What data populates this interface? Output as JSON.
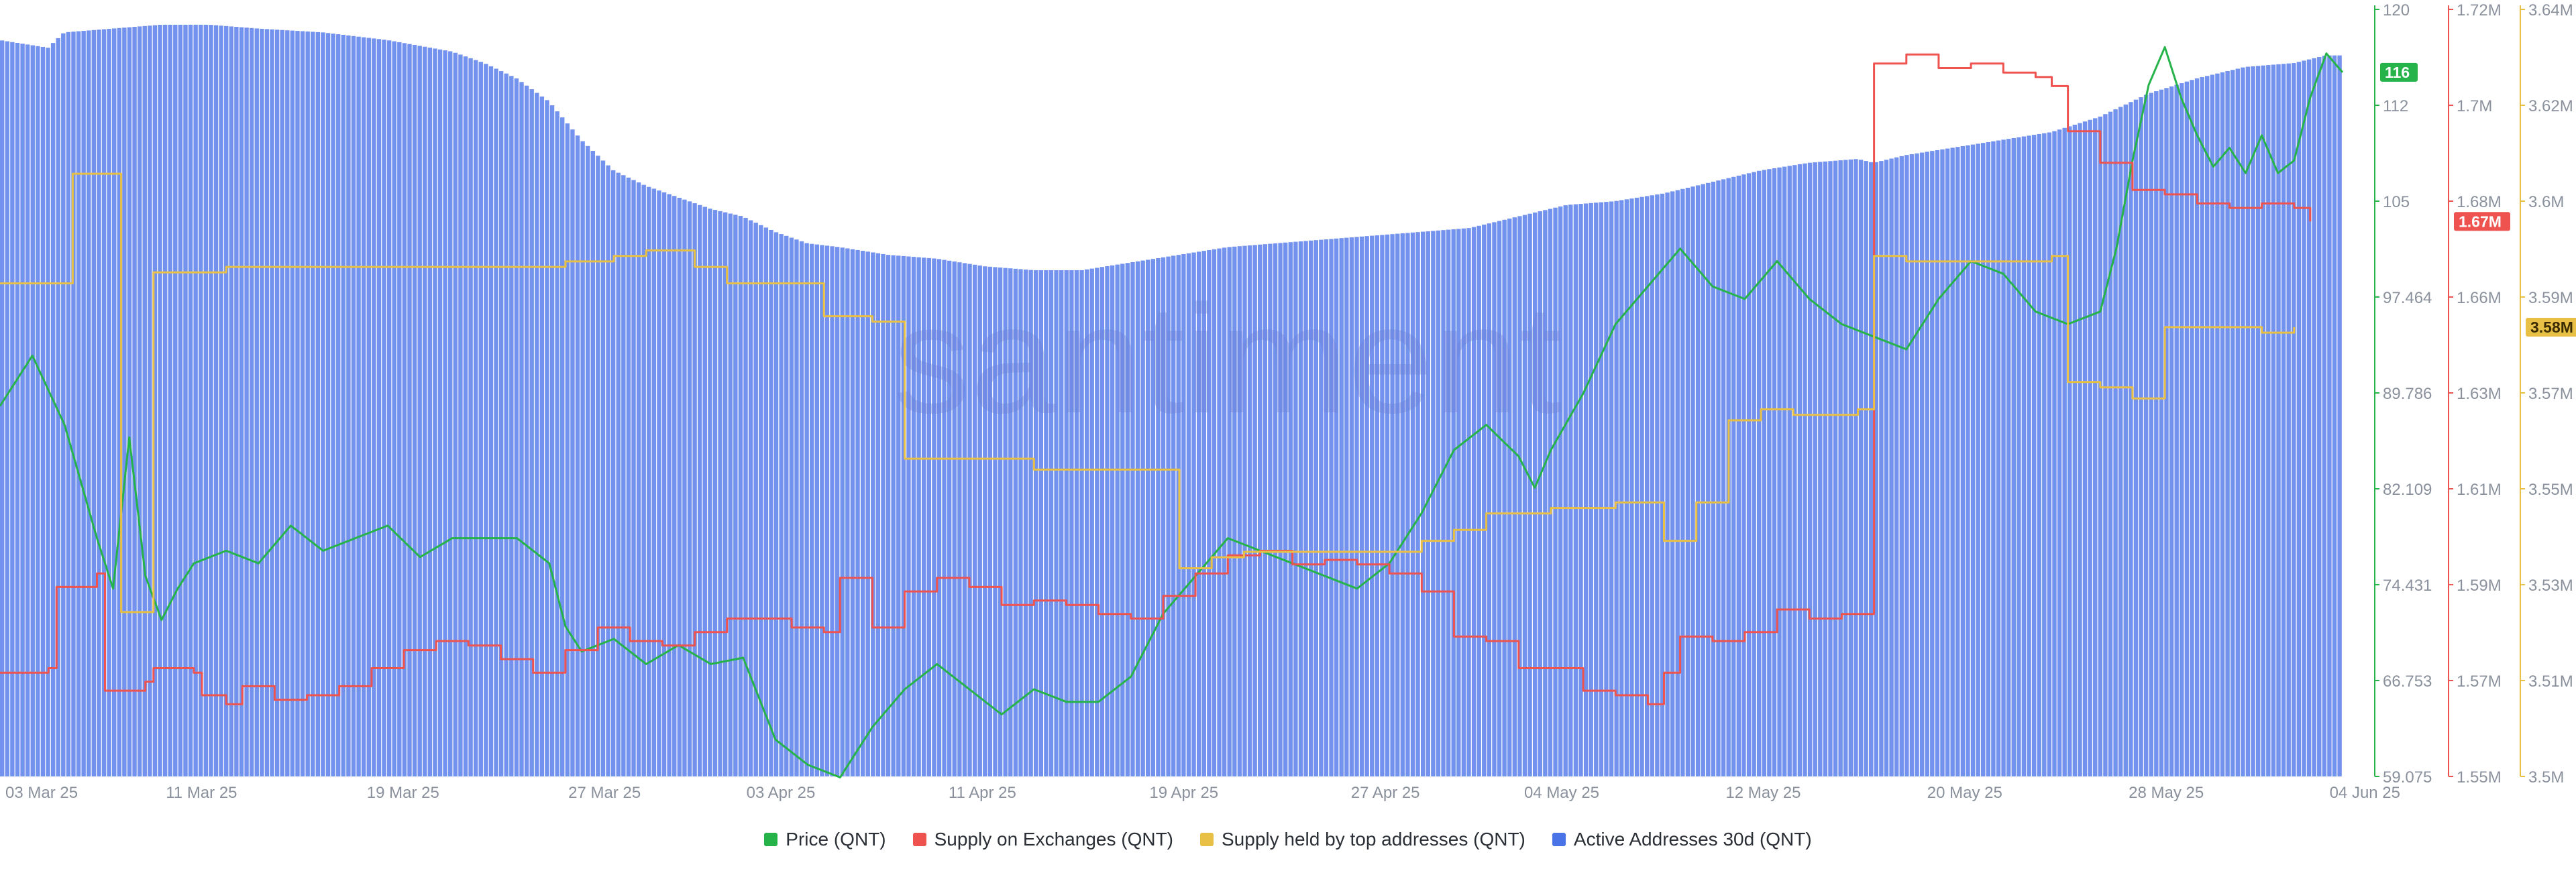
{
  "watermark": "santiment",
  "chart_data": {
    "type": "area",
    "xlabel": "",
    "x_tick_labels": [
      "03 Mar 25",
      "11 Mar 25",
      "19 Mar 25",
      "27 Mar 25",
      "03 Apr 25",
      "11 Apr 25",
      "19 Apr 25",
      "27 Apr 25",
      "04 May 25",
      "12 May 25",
      "20 May 25",
      "28 May 25",
      "04 Jun 25"
    ],
    "x_range": [
      "2025-03-03",
      "2025-06-04"
    ],
    "axes": [
      {
        "id": "price",
        "ticks": [
          "120",
          "112",
          "105",
          "97.464",
          "89.786",
          "82.109",
          "74.431",
          "66.753",
          "59.075"
        ],
        "ylim": [
          59.075,
          120
        ],
        "color": "#26b34a",
        "badge": "116"
      },
      {
        "id": "exchanges",
        "ticks": [
          "1.72M",
          "1.7M",
          "1.68M",
          "1.66M",
          "1.63M",
          "1.61M",
          "1.59M",
          "1.57M",
          "1.55M"
        ],
        "ylim": [
          1550000,
          1720000
        ],
        "color": "#ef5350",
        "badge": "1.67M"
      },
      {
        "id": "top",
        "ticks": [
          "3.64M",
          "3.62M",
          "3.6M",
          "3.59M",
          "3.57M",
          "3.55M",
          "3.53M",
          "3.51M",
          "3.5M"
        ],
        "ylim": [
          3500000,
          3640000
        ],
        "color": "#e9c046",
        "badge": "3.58M"
      },
      {
        "id": "active",
        "ylim": [
          0,
          100
        ],
        "hidden": true
      }
    ],
    "series": [
      {
        "name": "Price (QNT)",
        "axis": "price",
        "color": "#26b34a",
        "style": "line",
        "points": [
          [
            0,
            88.5
          ],
          [
            2,
            92.5
          ],
          [
            4,
            87
          ],
          [
            6,
            78
          ],
          [
            7,
            74
          ],
          [
            8,
            86
          ],
          [
            9,
            75
          ],
          [
            10,
            71.5
          ],
          [
            11,
            74
          ],
          [
            12,
            76
          ],
          [
            14,
            77
          ],
          [
            16,
            76
          ],
          [
            18,
            79
          ],
          [
            20,
            77
          ],
          [
            22,
            78
          ],
          [
            24,
            79
          ],
          [
            26,
            76.5
          ],
          [
            28,
            78
          ],
          [
            30,
            78
          ],
          [
            32,
            78
          ],
          [
            34,
            76
          ],
          [
            35,
            71
          ],
          [
            36,
            69
          ],
          [
            38,
            70
          ],
          [
            40,
            68
          ],
          [
            42,
            69.5
          ],
          [
            44,
            68
          ],
          [
            46,
            68.5
          ],
          [
            48,
            62
          ],
          [
            50,
            60
          ],
          [
            52,
            59
          ],
          [
            54,
            63
          ],
          [
            56,
            66
          ],
          [
            58,
            68
          ],
          [
            60,
            66
          ],
          [
            62,
            64
          ],
          [
            64,
            66
          ],
          [
            66,
            65
          ],
          [
            68,
            65
          ],
          [
            70,
            67
          ],
          [
            72,
            72
          ],
          [
            74,
            75
          ],
          [
            76,
            78
          ],
          [
            78,
            77
          ],
          [
            80,
            76
          ],
          [
            82,
            75
          ],
          [
            84,
            74
          ],
          [
            86,
            76
          ],
          [
            88,
            80
          ],
          [
            90,
            85
          ],
          [
            92,
            87
          ],
          [
            94,
            84.5
          ],
          [
            95,
            82
          ],
          [
            96,
            85
          ],
          [
            98,
            89.5
          ],
          [
            100,
            95
          ],
          [
            102,
            98
          ],
          [
            104,
            101
          ],
          [
            106,
            98
          ],
          [
            108,
            97
          ],
          [
            110,
            100
          ],
          [
            112,
            97
          ],
          [
            114,
            95
          ],
          [
            116,
            94
          ],
          [
            118,
            93
          ],
          [
            120,
            97
          ],
          [
            122,
            100
          ],
          [
            124,
            99
          ],
          [
            126,
            96
          ],
          [
            128,
            95
          ],
          [
            130,
            96
          ],
          [
            131,
            101
          ],
          [
            132,
            108
          ],
          [
            133,
            114
          ],
          [
            134,
            117
          ],
          [
            135,
            113
          ],
          [
            136,
            110
          ],
          [
            137,
            107.5
          ],
          [
            138,
            109
          ],
          [
            139,
            107
          ],
          [
            140,
            110
          ],
          [
            141,
            107
          ],
          [
            142,
            108
          ],
          [
            143,
            113
          ],
          [
            144,
            116.5
          ],
          [
            145,
            115
          ]
        ]
      },
      {
        "name": "Supply on Exchanges (QNT)",
        "axis": "exchanges",
        "color": "#ef5350",
        "style": "step",
        "points": [
          [
            0,
            1.573
          ],
          [
            3,
            1.574
          ],
          [
            3.5,
            1.592
          ],
          [
            6,
            1.595
          ],
          [
            6.5,
            1.569
          ],
          [
            9,
            1.571
          ],
          [
            9.5,
            1.574
          ],
          [
            12,
            1.573
          ],
          [
            12.5,
            1.568
          ],
          [
            14,
            1.566
          ],
          [
            15,
            1.57
          ],
          [
            17,
            1.567
          ],
          [
            19,
            1.568
          ],
          [
            21,
            1.57
          ],
          [
            23,
            1.574
          ],
          [
            25,
            1.578
          ],
          [
            27,
            1.58
          ],
          [
            29,
            1.579
          ],
          [
            31,
            1.576
          ],
          [
            33,
            1.573
          ],
          [
            35,
            1.578
          ],
          [
            37,
            1.583
          ],
          [
            39,
            1.58
          ],
          [
            41,
            1.579
          ],
          [
            43,
            1.582
          ],
          [
            45,
            1.585
          ],
          [
            47,
            1.585
          ],
          [
            49,
            1.583
          ],
          [
            51,
            1.582
          ],
          [
            52,
            1.594
          ],
          [
            54,
            1.583
          ],
          [
            56,
            1.591
          ],
          [
            58,
            1.594
          ],
          [
            60,
            1.592
          ],
          [
            62,
            1.588
          ],
          [
            64,
            1.589
          ],
          [
            66,
            1.588
          ],
          [
            68,
            1.586
          ],
          [
            70,
            1.585
          ],
          [
            72,
            1.59
          ],
          [
            74,
            1.595
          ],
          [
            76,
            1.599
          ],
          [
            78,
            1.6
          ],
          [
            80,
            1.597
          ],
          [
            82,
            1.598
          ],
          [
            84,
            1.597
          ],
          [
            86,
            1.595
          ],
          [
            88,
            1.591
          ],
          [
            90,
            1.581
          ],
          [
            92,
            1.58
          ],
          [
            94,
            1.574
          ],
          [
            96,
            1.574
          ],
          [
            98,
            1.569
          ],
          [
            100,
            1.568
          ],
          [
            102,
            1.566
          ],
          [
            103,
            1.573
          ],
          [
            104,
            1.581
          ],
          [
            106,
            1.58
          ],
          [
            108,
            1.582
          ],
          [
            110,
            1.587
          ],
          [
            112,
            1.585
          ],
          [
            114,
            1.586
          ],
          [
            115,
            1.586
          ],
          [
            116,
            1.708
          ],
          [
            118,
            1.71
          ],
          [
            120,
            1.707
          ],
          [
            122,
            1.708
          ],
          [
            124,
            1.706
          ],
          [
            126,
            1.705
          ],
          [
            127,
            1.703
          ],
          [
            128,
            1.693
          ],
          [
            130,
            1.686
          ],
          [
            132,
            1.68
          ],
          [
            134,
            1.679
          ],
          [
            136,
            1.677
          ],
          [
            138,
            1.676
          ],
          [
            140,
            1.677
          ],
          [
            142,
            1.676
          ],
          [
            143,
            1.673
          ]
        ]
      },
      {
        "name": "Supply held by top addresses (QNT)",
        "axis": "top",
        "color": "#e9c046",
        "style": "step",
        "points": [
          [
            0,
            3.59
          ],
          [
            4,
            3.59
          ],
          [
            4.5,
            3.61
          ],
          [
            7,
            3.61
          ],
          [
            7.5,
            3.53
          ],
          [
            9,
            3.53
          ],
          [
            9.5,
            3.592
          ],
          [
            12,
            3.592
          ],
          [
            14,
            3.593
          ],
          [
            16,
            3.593
          ],
          [
            18,
            3.593
          ],
          [
            20,
            3.593
          ],
          [
            22,
            3.593
          ],
          [
            24,
            3.593
          ],
          [
            26,
            3.593
          ],
          [
            28,
            3.593
          ],
          [
            30,
            3.593
          ],
          [
            32,
            3.593
          ],
          [
            34,
            3.593
          ],
          [
            35,
            3.594
          ],
          [
            38,
            3.595
          ],
          [
            40,
            3.596
          ],
          [
            42,
            3.596
          ],
          [
            43,
            3.593
          ],
          [
            45,
            3.59
          ],
          [
            48,
            3.59
          ],
          [
            50,
            3.59
          ],
          [
            51,
            3.584
          ],
          [
            54,
            3.583
          ],
          [
            56,
            3.558
          ],
          [
            58,
            3.558
          ],
          [
            60,
            3.558
          ],
          [
            62,
            3.558
          ],
          [
            64,
            3.556
          ],
          [
            66,
            3.556
          ],
          [
            68,
            3.556
          ],
          [
            70,
            3.556
          ],
          [
            72,
            3.556
          ],
          [
            73,
            3.538
          ],
          [
            75,
            3.54
          ],
          [
            77,
            3.541
          ],
          [
            80,
            3.541
          ],
          [
            82,
            3.541
          ],
          [
            84,
            3.541
          ],
          [
            86,
            3.541
          ],
          [
            88,
            3.543
          ],
          [
            90,
            3.545
          ],
          [
            92,
            3.548
          ],
          [
            94,
            3.548
          ],
          [
            96,
            3.549
          ],
          [
            98,
            3.549
          ],
          [
            100,
            3.55
          ],
          [
            102,
            3.55
          ],
          [
            103,
            3.543
          ],
          [
            105,
            3.55
          ],
          [
            107,
            3.565
          ],
          [
            109,
            3.567
          ],
          [
            111,
            3.566
          ],
          [
            113,
            3.566
          ],
          [
            115,
            3.567
          ],
          [
            116,
            3.595
          ],
          [
            118,
            3.594
          ],
          [
            120,
            3.594
          ],
          [
            122,
            3.594
          ],
          [
            124,
            3.594
          ],
          [
            127,
            3.595
          ],
          [
            128,
            3.572
          ],
          [
            130,
            3.571
          ],
          [
            132,
            3.569
          ],
          [
            134,
            3.582
          ],
          [
            136,
            3.582
          ],
          [
            138,
            3.582
          ],
          [
            140,
            3.581
          ],
          [
            142,
            3.582
          ]
        ]
      },
      {
        "name": "Active Addresses 30d (QNT)",
        "axis": "active",
        "color": "#4a73e8",
        "style": "bars",
        "points": [
          [
            0,
            96
          ],
          [
            3,
            95
          ],
          [
            4,
            97
          ],
          [
            7,
            97.5
          ],
          [
            10,
            98
          ],
          [
            13,
            98
          ],
          [
            16,
            97.5
          ],
          [
            20,
            97
          ],
          [
            24,
            96
          ],
          [
            28,
            94.5
          ],
          [
            30,
            93
          ],
          [
            32,
            91
          ],
          [
            34,
            88
          ],
          [
            36,
            83
          ],
          [
            38,
            79
          ],
          [
            40,
            77
          ],
          [
            42,
            75.5
          ],
          [
            44,
            74
          ],
          [
            46,
            73
          ],
          [
            48,
            71
          ],
          [
            50,
            69.5
          ],
          [
            52,
            69
          ],
          [
            55,
            68
          ],
          [
            58,
            67.5
          ],
          [
            61,
            66.5
          ],
          [
            64,
            66
          ],
          [
            67,
            66
          ],
          [
            70,
            67
          ],
          [
            73,
            68
          ],
          [
            76,
            69
          ],
          [
            79,
            69.5
          ],
          [
            82,
            70
          ],
          [
            85,
            70.5
          ],
          [
            88,
            71
          ],
          [
            91,
            71.5
          ],
          [
            94,
            73
          ],
          [
            97,
            74.5
          ],
          [
            100,
            75
          ],
          [
            103,
            76
          ],
          [
            106,
            77.5
          ],
          [
            109,
            79
          ],
          [
            112,
            80
          ],
          [
            115,
            80.5
          ],
          [
            116,
            80
          ],
          [
            118,
            81
          ],
          [
            121,
            82
          ],
          [
            124,
            83
          ],
          [
            127,
            84
          ],
          [
            130,
            86
          ],
          [
            133,
            89
          ],
          [
            136,
            91
          ],
          [
            139,
            92.5
          ],
          [
            142,
            93
          ],
          [
            144,
            94
          ],
          [
            145,
            94
          ]
        ]
      }
    ]
  }
}
